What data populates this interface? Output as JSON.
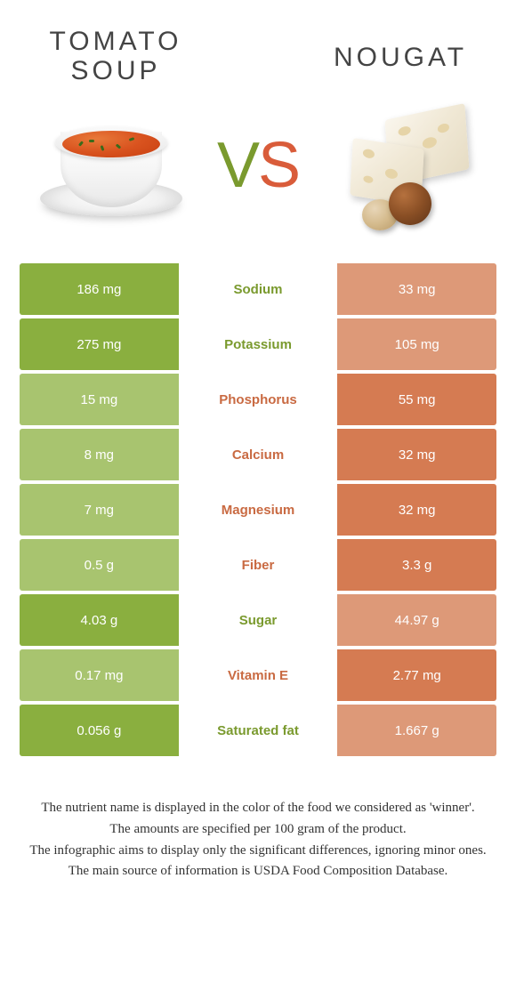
{
  "colors": {
    "green": "#8aaf3f",
    "orange": "#d57b52",
    "green_text": "#7a9a2e",
    "orange_text": "#c96a42",
    "green_faded": "#a8c46f",
    "orange_faded": "#dd9978"
  },
  "left": {
    "title": "Tomato soup"
  },
  "right": {
    "title": "Nougat"
  },
  "vs": {
    "v": "V",
    "s": "S"
  },
  "rows": [
    {
      "label": "Sodium",
      "left": "186 mg",
      "right": "33 mg",
      "winner": "left"
    },
    {
      "label": "Potassium",
      "left": "275 mg",
      "right": "105 mg",
      "winner": "left"
    },
    {
      "label": "Phosphorus",
      "left": "15 mg",
      "right": "55 mg",
      "winner": "right"
    },
    {
      "label": "Calcium",
      "left": "8 mg",
      "right": "32 mg",
      "winner": "right"
    },
    {
      "label": "Magnesium",
      "left": "7 mg",
      "right": "32 mg",
      "winner": "right"
    },
    {
      "label": "Fiber",
      "left": "0.5 g",
      "right": "3.3 g",
      "winner": "right"
    },
    {
      "label": "Sugar",
      "left": "4.03 g",
      "right": "44.97 g",
      "winner": "left"
    },
    {
      "label": "Vitamin E",
      "left": "0.17 mg",
      "right": "2.77 mg",
      "winner": "right"
    },
    {
      "label": "Saturated fat",
      "left": "0.056 g",
      "right": "1.667 g",
      "winner": "left"
    }
  ],
  "footer": {
    "l1": "The nutrient name is displayed in the color of the food we considered as 'winner'.",
    "l2": "The amounts are specified per 100 gram of the product.",
    "l3": "The infographic aims to display only the significant differences, ignoring minor ones.",
    "l4": "The main source of information is USDA Food Composition Database."
  }
}
